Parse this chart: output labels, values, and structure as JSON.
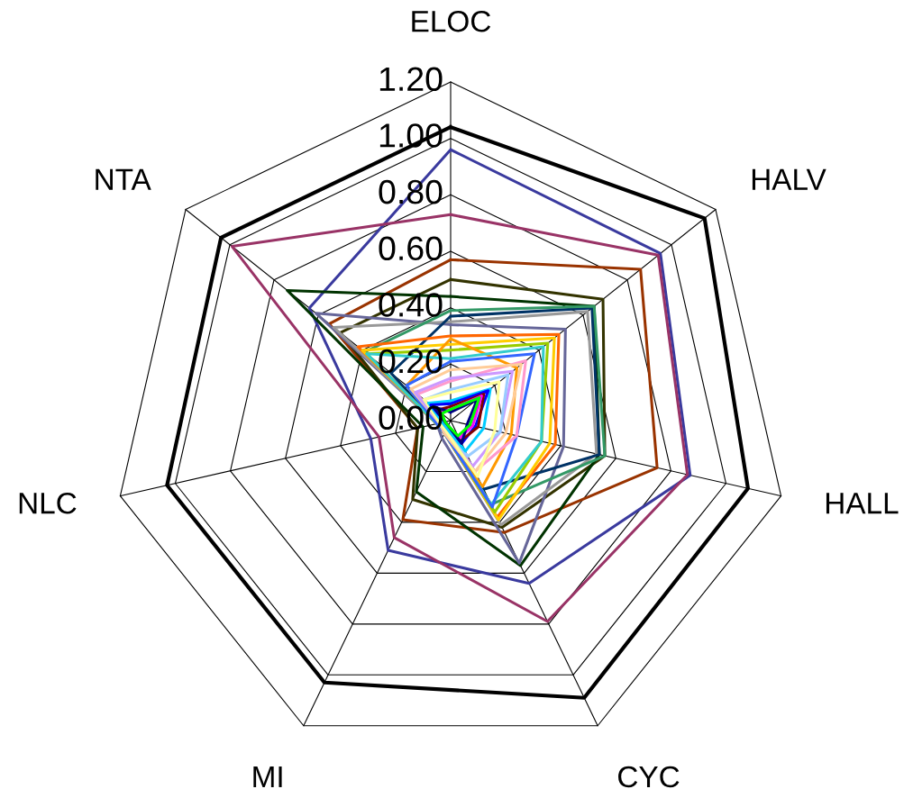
{
  "chart_data": {
    "type": "radar",
    "categories": [
      "ELOC",
      "HALV",
      "HALL",
      "CYC",
      "MI",
      "NLC",
      "NTA"
    ],
    "ylim": [
      0,
      1.2
    ],
    "yticks": [
      {
        "value": 0,
        "label": "0.00"
      },
      {
        "value": 0.2,
        "label": "0.20"
      },
      {
        "value": 0.4,
        "label": "0.40"
      },
      {
        "value": 0.6,
        "label": "0.60"
      },
      {
        "value": 0.8,
        "label": "0.80"
      },
      {
        "value": 1.0,
        "label": "1.00"
      },
      {
        "value": 1.2,
        "label": "1.20"
      }
    ],
    "grid": true,
    "series": [
      {
        "color": "#000000",
        "values": [
          1.04,
          1.15,
          1.08,
          1.09,
          1.03,
          1.03,
          1.04
        ]
      },
      {
        "color": "#3a3a9e",
        "values": [
          0.96,
          0.95,
          0.87,
          0.64,
          0.51,
          0.29,
          0.64
        ]
      },
      {
        "color": "#993366",
        "values": [
          0.73,
          0.94,
          0.86,
          0.79,
          0.46,
          0.26,
          0.99
        ]
      },
      {
        "color": "#993300",
        "values": [
          0.57,
          0.86,
          0.75,
          0.44,
          0.39,
          0.12,
          0.55
        ]
      },
      {
        "color": "#333300",
        "values": [
          0.5,
          0.69,
          0.56,
          0.42,
          0.31,
          0.12,
          0.5
        ]
      },
      {
        "color": "#003300",
        "values": [
          0.44,
          0.65,
          0.54,
          0.57,
          0.28,
          0.1,
          0.74
        ]
      },
      {
        "color": "#666699",
        "values": [
          0.34,
          0.52,
          0.41,
          0.56,
          0.07,
          0.05,
          0.61
        ]
      },
      {
        "color": "#999999",
        "values": [
          0.35,
          0.62,
          0.53,
          0.41,
          0.05,
          0.05,
          0.53
        ]
      },
      {
        "color": "#003366",
        "values": [
          0.37,
          0.64,
          0.54,
          0.27,
          0.05,
          0.05,
          0.27
        ]
      },
      {
        "color": "#339966",
        "values": [
          0.39,
          0.65,
          0.56,
          0.33,
          0.05,
          0.05,
          0.39
        ]
      },
      {
        "color": "#ff6600",
        "values": [
          0.3,
          0.49,
          0.38,
          0.38,
          0.05,
          0.05,
          0.42
        ]
      },
      {
        "color": "#ffcc00",
        "values": [
          0.27,
          0.47,
          0.36,
          0.39,
          0.05,
          0.05,
          0.4
        ]
      },
      {
        "color": "#99cc00",
        "values": [
          0.25,
          0.44,
          0.33,
          0.36,
          0.05,
          0.05,
          0.38
        ]
      },
      {
        "color": "#ff9900",
        "values": [
          0.29,
          0.3,
          0.22,
          0.26,
          0.05,
          0.05,
          0.2
        ]
      },
      {
        "color": "#33cccc",
        "values": [
          0.22,
          0.42,
          0.33,
          0.33,
          0.05,
          0.05,
          0.38
        ]
      },
      {
        "color": "#3366ff",
        "values": [
          0.21,
          0.38,
          0.24,
          0.34,
          0.05,
          0.05,
          0.2
        ]
      },
      {
        "color": "#ff99cc",
        "values": [
          0.14,
          0.34,
          0.24,
          0.2,
          0.05,
          0.04,
          0.15
        ]
      },
      {
        "color": "#ffcc99",
        "values": [
          0.18,
          0.32,
          0.2,
          0.2,
          0.05,
          0.04,
          0.18
        ]
      },
      {
        "color": "#cc99ff",
        "values": [
          0.15,
          0.28,
          0.18,
          0.18,
          0.04,
          0.04,
          0.16
        ]
      },
      {
        "color": "#99ccff",
        "values": [
          0.11,
          0.26,
          0.18,
          0.14,
          0.04,
          0.04,
          0.12
        ]
      },
      {
        "color": "#ffff99",
        "values": [
          0.1,
          0.22,
          0.16,
          0.22,
          0.04,
          0.04,
          0.12
        ]
      },
      {
        "color": "#00ccff",
        "values": [
          0.07,
          0.18,
          0.12,
          0.12,
          0.03,
          0.03,
          0.1
        ]
      },
      {
        "color": "#0000ff",
        "values": [
          0.06,
          0.17,
          0.09,
          0.09,
          0.02,
          0.02,
          0.09
        ]
      },
      {
        "color": "#800000",
        "values": [
          0.05,
          0.15,
          0.1,
          0.08,
          0.02,
          0.02,
          0.06
        ]
      },
      {
        "color": "#ff00ff",
        "values": [
          0.04,
          0.14,
          0.08,
          0.07,
          0.02,
          0.02,
          0.05
        ]
      },
      {
        "color": "#000080",
        "values": [
          0.03,
          0.12,
          0.06,
          0.09,
          0.02,
          0.02,
          0.08
        ]
      },
      {
        "color": "#00ff00",
        "values": [
          0.04,
          0.13,
          0.07,
          0.06,
          0.02,
          0.02,
          0.04
        ]
      }
    ]
  }
}
